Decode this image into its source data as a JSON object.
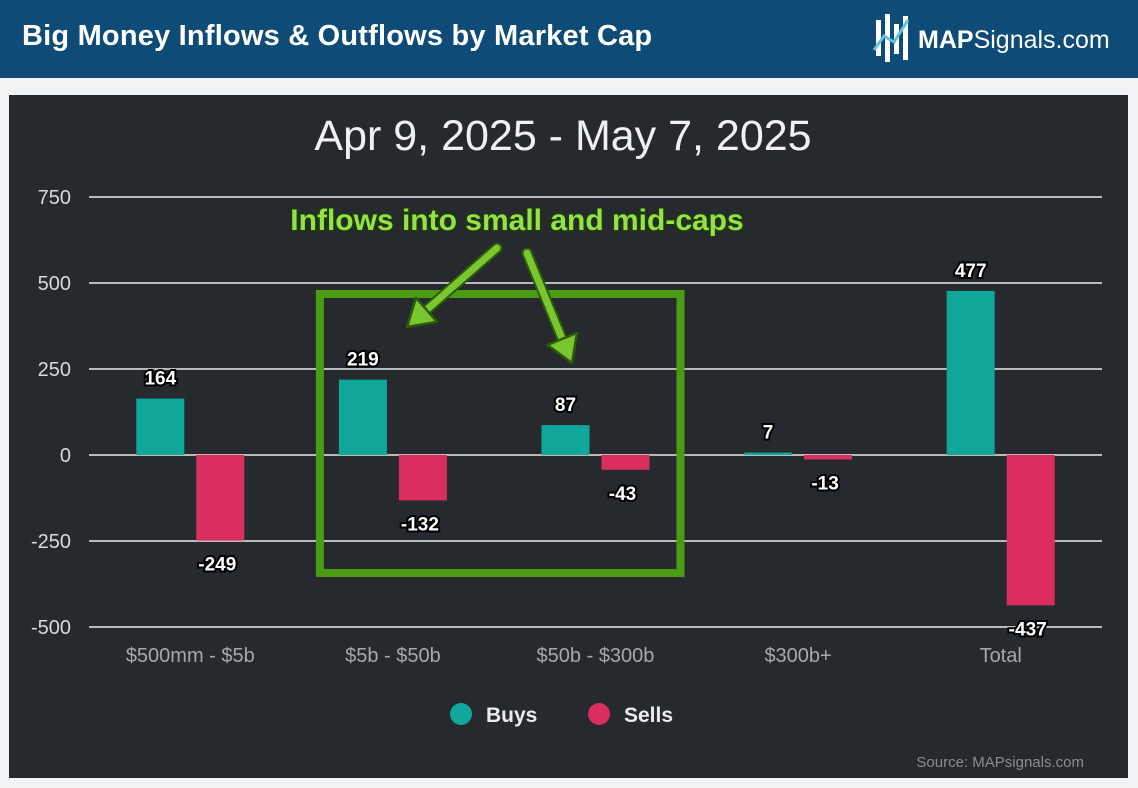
{
  "header": {
    "title": "Big Money Inflows & Outflows by Market Cap",
    "brand_bold": "MAP",
    "brand_rest": "Signals.com",
    "background": "#0f4b77"
  },
  "source": "Source: MAPsignals.com",
  "colors": {
    "buys": "#0fa79a",
    "sells": "#d92e5e",
    "annotation": "#4b9c14",
    "annotation_text": "#96e04a"
  },
  "chart_data": {
    "type": "bar",
    "title": "Apr 9, 2025 - May 7, 2025",
    "categories": [
      "$500mm - $5b",
      "$5b - $50b",
      "$50b - $300b",
      "$300b+",
      "Total"
    ],
    "series": [
      {
        "name": "Buys",
        "values": [
          164,
          219,
          87,
          7,
          477
        ],
        "labels": [
          "164",
          "219",
          "87",
          "7",
          "477"
        ]
      },
      {
        "name": "Sells",
        "values": [
          -249,
          -132,
          -43,
          -13,
          -437
        ],
        "labels": [
          "-249",
          "-132",
          "-43",
          "-13",
          "-437"
        ]
      }
    ],
    "yticks": [
      "750",
      "500",
      "250",
      "0",
      "-250",
      "-500"
    ],
    "ylim": [
      -500,
      750
    ],
    "grid": true,
    "legend_position": "bottom",
    "annotation": {
      "text": "Inflows into small and mid-caps",
      "highlight_categories": [
        "$5b - $50b",
        "$50b - $300b"
      ]
    }
  }
}
